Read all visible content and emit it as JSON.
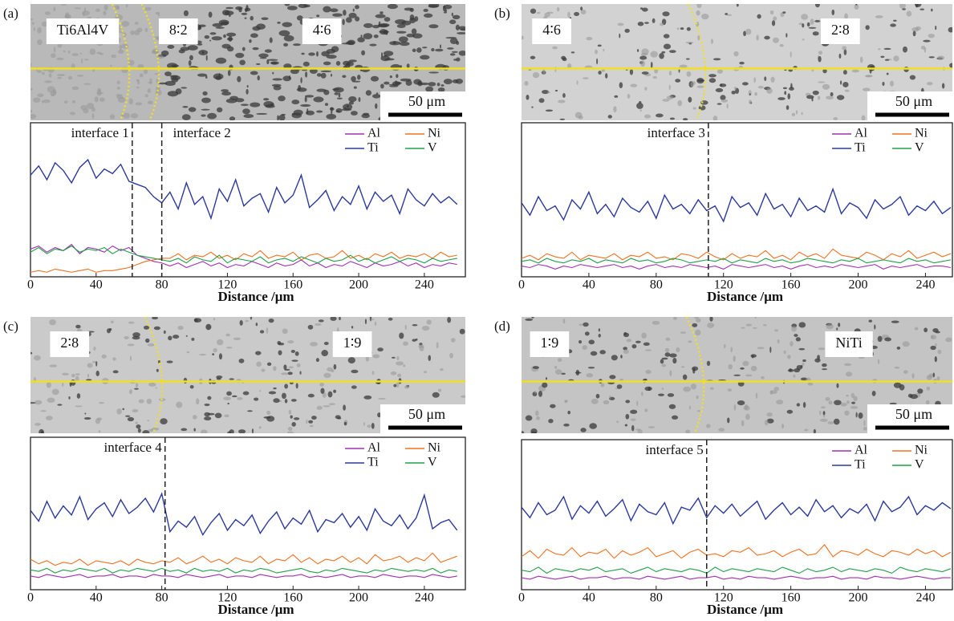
{
  "chart_data": [
    {
      "type": "line",
      "label": "(a)",
      "xlabel": "Distance /μm",
      "xlim": [
        0,
        265
      ],
      "ylim": [
        0,
        100
      ],
      "xticks": [
        0,
        40,
        80,
        120,
        160,
        200,
        240
      ],
      "image": {
        "labels": [
          "Ti6Al4V",
          "8∶2",
          "4∶6"
        ],
        "scale_bar": "50 μm"
      },
      "interfaces": [
        {
          "label": "interface 1",
          "x": 62
        },
        {
          "label": "interface 2",
          "x": 80
        }
      ],
      "x": [
        0,
        5,
        10,
        15,
        20,
        25,
        30,
        35,
        40,
        45,
        50,
        55,
        60,
        65,
        70,
        75,
        80,
        85,
        90,
        95,
        100,
        105,
        110,
        115,
        120,
        125,
        130,
        135,
        140,
        145,
        150,
        155,
        160,
        165,
        170,
        175,
        180,
        185,
        190,
        195,
        200,
        205,
        210,
        215,
        220,
        225,
        230,
        235,
        240,
        245,
        250,
        255,
        260
      ],
      "series": [
        {
          "name": "Al",
          "color": "#a030b0",
          "values": [
            18,
            20,
            16,
            19,
            17,
            21,
            15,
            19,
            18,
            16,
            20,
            17,
            19,
            14,
            12,
            10,
            9,
            7,
            9,
            6,
            8,
            10,
            7,
            9,
            6,
            8,
            7,
            10,
            8,
            6,
            9,
            7,
            8,
            11,
            7,
            9,
            6,
            8,
            7,
            10,
            8,
            6,
            9,
            7,
            8,
            10,
            7,
            9,
            6,
            8,
            7,
            9,
            8
          ]
        },
        {
          "name": "Ni",
          "color": "#f07020",
          "values": [
            3,
            4,
            3,
            5,
            4,
            3,
            4,
            5,
            3,
            4,
            4,
            5,
            6,
            8,
            10,
            11,
            12,
            12,
            15,
            11,
            14,
            13,
            16,
            12,
            14,
            11,
            15,
            13,
            17,
            12,
            14,
            13,
            16,
            11,
            14,
            15,
            12,
            13,
            17,
            12,
            14,
            11,
            15,
            13,
            16,
            12,
            14,
            13,
            15,
            12,
            16,
            13,
            14
          ]
        },
        {
          "name": "Ti",
          "color": "#2b3a9c",
          "values": [
            66,
            72,
            63,
            74,
            69,
            61,
            71,
            76,
            64,
            70,
            67,
            73,
            62,
            60,
            58,
            52,
            48,
            55,
            44,
            61,
            47,
            52,
            38,
            57,
            49,
            63,
            46,
            51,
            54,
            42,
            58,
            48,
            53,
            66,
            45,
            50,
            56,
            43,
            52,
            47,
            59,
            44,
            55,
            49,
            53,
            41,
            57,
            50,
            46,
            54,
            48,
            52,
            47
          ]
        },
        {
          "name": "V",
          "color": "#20a048",
          "values": [
            16,
            19,
            15,
            18,
            17,
            20,
            16,
            18,
            17,
            19,
            15,
            18,
            16,
            14,
            13,
            12,
            11,
            10,
            12,
            9,
            13,
            11,
            10,
            14,
            9,
            12,
            11,
            10,
            13,
            9,
            11,
            12,
            10,
            13,
            11,
            9,
            12,
            10,
            11,
            14,
            10,
            12,
            9,
            11,
            13,
            10,
            12,
            11,
            9,
            12,
            10,
            11,
            12
          ]
        }
      ]
    },
    {
      "type": "line",
      "label": "(b)",
      "xlabel": "Distance /μm",
      "xlim": [
        0,
        256
      ],
      "ylim": [
        0,
        100
      ],
      "xticks": [
        0,
        40,
        80,
        120,
        160,
        200,
        240
      ],
      "image": {
        "labels": [
          "4∶6",
          "2∶8"
        ],
        "scale_bar": "50 μm"
      },
      "interfaces": [
        {
          "label": "interface 3",
          "x": 111
        }
      ],
      "x": [
        0,
        5,
        10,
        15,
        20,
        25,
        30,
        35,
        40,
        45,
        50,
        55,
        60,
        65,
        70,
        75,
        80,
        85,
        90,
        95,
        100,
        105,
        110,
        115,
        120,
        125,
        130,
        135,
        140,
        145,
        150,
        155,
        160,
        165,
        170,
        175,
        180,
        185,
        190,
        195,
        200,
        205,
        210,
        215,
        220,
        225,
        230,
        235,
        240,
        245,
        250,
        255
      ],
      "series": [
        {
          "name": "Al",
          "color": "#a030b0",
          "values": [
            7,
            6,
            8,
            7,
            5,
            7,
            6,
            8,
            7,
            6,
            7,
            8,
            6,
            7,
            5,
            7,
            8,
            6,
            7,
            6,
            8,
            7,
            6,
            7,
            5,
            8,
            7,
            6,
            7,
            8,
            6,
            7,
            5,
            7,
            8,
            6,
            7,
            6,
            8,
            7,
            6,
            7,
            8,
            5,
            7,
            6,
            7,
            8,
            6,
            7,
            7,
            6
          ]
        },
        {
          "name": "Ni",
          "color": "#f07020",
          "values": [
            12,
            14,
            11,
            15,
            13,
            12,
            16,
            11,
            14,
            13,
            12,
            15,
            11,
            14,
            13,
            16,
            12,
            13,
            11,
            15,
            14,
            12,
            16,
            13,
            11,
            15,
            12,
            14,
            13,
            17,
            12,
            14,
            11,
            16,
            13,
            15,
            12,
            18,
            14,
            13,
            12,
            16,
            14,
            11,
            15,
            13,
            17,
            12,
            14,
            16,
            13,
            15
          ]
        },
        {
          "name": "Ti",
          "color": "#2b3a9c",
          "values": [
            48,
            40,
            52,
            43,
            46,
            37,
            50,
            44,
            55,
            41,
            47,
            39,
            51,
            45,
            42,
            49,
            38,
            53,
            44,
            47,
            41,
            50,
            43,
            46,
            36,
            52,
            45,
            48,
            40,
            54,
            44,
            47,
            39,
            51,
            43,
            46,
            42,
            57,
            41,
            48,
            45,
            38,
            50,
            44,
            47,
            52,
            40,
            46,
            43,
            49,
            41,
            45
          ]
        },
        {
          "name": "V",
          "color": "#20a048",
          "values": [
            10,
            11,
            9,
            12,
            10,
            9,
            11,
            10,
            12,
            9,
            11,
            10,
            9,
            12,
            10,
            11,
            9,
            10,
            12,
            11,
            9,
            10,
            11,
            10,
            12,
            9,
            11,
            10,
            9,
            12,
            10,
            11,
            9,
            10,
            12,
            11,
            10,
            9,
            11,
            10,
            12,
            9,
            10,
            11,
            10,
            9,
            12,
            10,
            11,
            9,
            10,
            11
          ]
        }
      ]
    },
    {
      "type": "line",
      "label": "(c)",
      "xlabel": "Distance /μm",
      "xlim": [
        0,
        265
      ],
      "ylim": [
        0,
        100
      ],
      "xticks": [
        0,
        40,
        80,
        120,
        160,
        200,
        240
      ],
      "image": {
        "labels": [
          "2∶8",
          "1∶9"
        ],
        "scale_bar": "50 μm"
      },
      "interfaces": [
        {
          "label": "interface 4",
          "x": 82
        }
      ],
      "x": [
        0,
        5,
        10,
        15,
        20,
        25,
        30,
        35,
        40,
        45,
        50,
        55,
        60,
        65,
        70,
        75,
        80,
        85,
        90,
        95,
        100,
        105,
        110,
        115,
        120,
        125,
        130,
        135,
        140,
        145,
        150,
        155,
        160,
        165,
        170,
        175,
        180,
        185,
        190,
        195,
        200,
        205,
        210,
        215,
        220,
        225,
        230,
        235,
        240,
        245,
        250,
        255,
        260
      ],
      "series": [
        {
          "name": "Al",
          "color": "#a030b0",
          "values": [
            9,
            8,
            10,
            9,
            8,
            9,
            10,
            8,
            9,
            9,
            10,
            8,
            9,
            9,
            8,
            10,
            9,
            9,
            8,
            10,
            9,
            8,
            9,
            10,
            8,
            9,
            9,
            8,
            10,
            9,
            8,
            9,
            9,
            10,
            8,
            9,
            8,
            9,
            10,
            8,
            9,
            9,
            8,
            10,
            9,
            8,
            9,
            9,
            8,
            10,
            9,
            8,
            9
          ]
        },
        {
          "name": "Ni",
          "color": "#f07020",
          "values": [
            20,
            17,
            19,
            16,
            18,
            17,
            20,
            16,
            19,
            18,
            17,
            19,
            16,
            20,
            18,
            17,
            19,
            18,
            21,
            17,
            19,
            22,
            18,
            20,
            17,
            21,
            19,
            18,
            22,
            17,
            20,
            19,
            23,
            18,
            21,
            17,
            20,
            19,
            22,
            18,
            21,
            17,
            23,
            19,
            20,
            22,
            18,
            21,
            19,
            24,
            18,
            20,
            22
          ]
        },
        {
          "name": "Ti",
          "color": "#2b3a9c",
          "values": [
            52,
            45,
            58,
            47,
            55,
            49,
            61,
            46,
            53,
            57,
            48,
            59,
            50,
            54,
            60,
            51,
            63,
            38,
            45,
            41,
            48,
            36,
            44,
            50,
            39,
            46,
            42,
            49,
            37,
            45,
            51,
            40,
            47,
            43,
            52,
            38,
            46,
            44,
            50,
            41,
            48,
            39,
            53,
            45,
            42,
            49,
            40,
            47,
            62,
            40,
            44,
            46,
            39
          ]
        },
        {
          "name": "V",
          "color": "#20a048",
          "values": [
            13,
            12,
            14,
            11,
            13,
            12,
            14,
            13,
            12,
            14,
            11,
            13,
            12,
            14,
            13,
            12,
            14,
            12,
            13,
            11,
            14,
            12,
            13,
            12,
            14,
            11,
            13,
            12,
            14,
            13,
            11,
            12,
            13,
            14,
            12,
            11,
            13,
            12,
            14,
            13,
            12,
            11,
            13,
            12,
            14,
            13,
            12,
            13,
            12,
            14,
            11,
            13,
            12
          ]
        }
      ]
    },
    {
      "type": "line",
      "label": "(d)",
      "xlabel": "Distance /μm",
      "xlim": [
        0,
        256
      ],
      "ylim": [
        0,
        100
      ],
      "xticks": [
        0,
        40,
        80,
        120,
        160,
        200,
        240
      ],
      "image": {
        "labels": [
          "1∶9",
          "NiTi"
        ],
        "scale_bar": "50 μm"
      },
      "interfaces": [
        {
          "label": "interface 5",
          "x": 110
        }
      ],
      "x": [
        0,
        5,
        10,
        15,
        20,
        25,
        30,
        35,
        40,
        45,
        50,
        55,
        60,
        65,
        70,
        75,
        80,
        85,
        90,
        95,
        100,
        105,
        110,
        115,
        120,
        125,
        130,
        135,
        140,
        145,
        150,
        155,
        160,
        165,
        170,
        175,
        180,
        185,
        190,
        195,
        200,
        205,
        210,
        215,
        220,
        225,
        230,
        235,
        240,
        245,
        250,
        255
      ],
      "series": [
        {
          "name": "Al",
          "color": "#a030b0",
          "values": [
            8,
            7,
            9,
            8,
            7,
            8,
            9,
            7,
            8,
            8,
            9,
            7,
            8,
            8,
            7,
            9,
            8,
            7,
            8,
            9,
            7,
            8,
            8,
            9,
            7,
            8,
            7,
            9,
            8,
            8,
            7,
            8,
            9,
            8,
            7,
            8,
            8,
            9,
            7,
            8,
            8,
            7,
            9,
            8,
            8,
            7,
            8,
            9,
            8,
            7,
            8,
            8
          ]
        },
        {
          "name": "Ni",
          "color": "#f07020",
          "values": [
            22,
            26,
            21,
            27,
            24,
            23,
            28,
            22,
            25,
            24,
            27,
            21,
            26,
            23,
            25,
            28,
            22,
            24,
            26,
            21,
            25,
            27,
            23,
            24,
            22,
            26,
            25,
            28,
            23,
            24,
            26,
            22,
            25,
            27,
            23,
            24,
            30,
            22,
            26,
            25,
            23,
            27,
            24,
            22,
            26,
            25,
            23,
            27,
            24,
            26,
            22,
            25
          ]
        },
        {
          "name": "Ti",
          "color": "#2b3a9c",
          "values": [
            55,
            48,
            58,
            50,
            53,
            62,
            47,
            56,
            51,
            59,
            49,
            54,
            60,
            46,
            57,
            52,
            50,
            58,
            44,
            55,
            53,
            61,
            48,
            56,
            51,
            57,
            49,
            54,
            59,
            47,
            53,
            58,
            50,
            55,
            49,
            60,
            52,
            56,
            48,
            54,
            51,
            57,
            46,
            59,
            52,
            55,
            62,
            50,
            56,
            53,
            58,
            54
          ]
        },
        {
          "name": "V",
          "color": "#20a048",
          "values": [
            13,
            12,
            15,
            11,
            14,
            13,
            12,
            14,
            13,
            15,
            12,
            13,
            14,
            11,
            13,
            15,
            12,
            14,
            13,
            12,
            14,
            13,
            11,
            15,
            12,
            14,
            13,
            12,
            14,
            13,
            12,
            15,
            13,
            11,
            14,
            12,
            13,
            15,
            12,
            14,
            13,
            12,
            14,
            13,
            11,
            15,
            13,
            12,
            14,
            13,
            12,
            14
          ]
        }
      ]
    }
  ]
}
